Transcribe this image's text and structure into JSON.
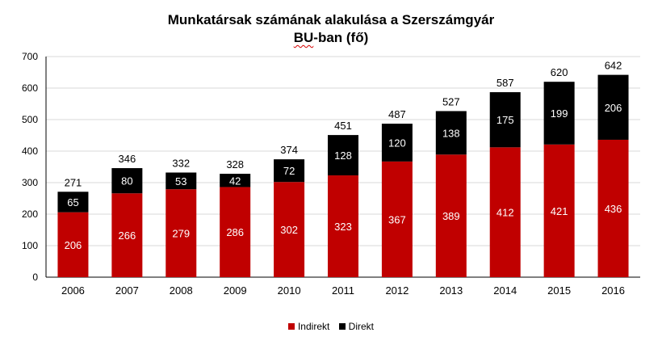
{
  "chart_data": {
    "type": "bar",
    "stacked": true,
    "title_line1": "Munkatársak számának alakulása a Szerszámgyár",
    "title_line2_pre": "BU",
    "title_line2_post": "-ban (fő)",
    "categories": [
      "2006",
      "2007",
      "2008",
      "2009",
      "2010",
      "2011",
      "2012",
      "2013",
      "2014",
      "2015",
      "2016"
    ],
    "series": [
      {
        "name": "Indirekt",
        "color": "#c00000",
        "values": [
          206,
          266,
          279,
          286,
          302,
          323,
          367,
          389,
          412,
          421,
          436
        ]
      },
      {
        "name": "Direkt",
        "color": "#000000",
        "values": [
          65,
          80,
          53,
          42,
          72,
          128,
          120,
          138,
          175,
          199,
          206
        ]
      }
    ],
    "totals": [
      271,
      346,
      332,
      328,
      374,
      451,
      487,
      527,
      587,
      620,
      642
    ],
    "ylim": [
      0,
      700
    ],
    "yticks": [
      0,
      100,
      200,
      300,
      400,
      500,
      600,
      700
    ],
    "grid": true,
    "legend_position": "bottom"
  }
}
